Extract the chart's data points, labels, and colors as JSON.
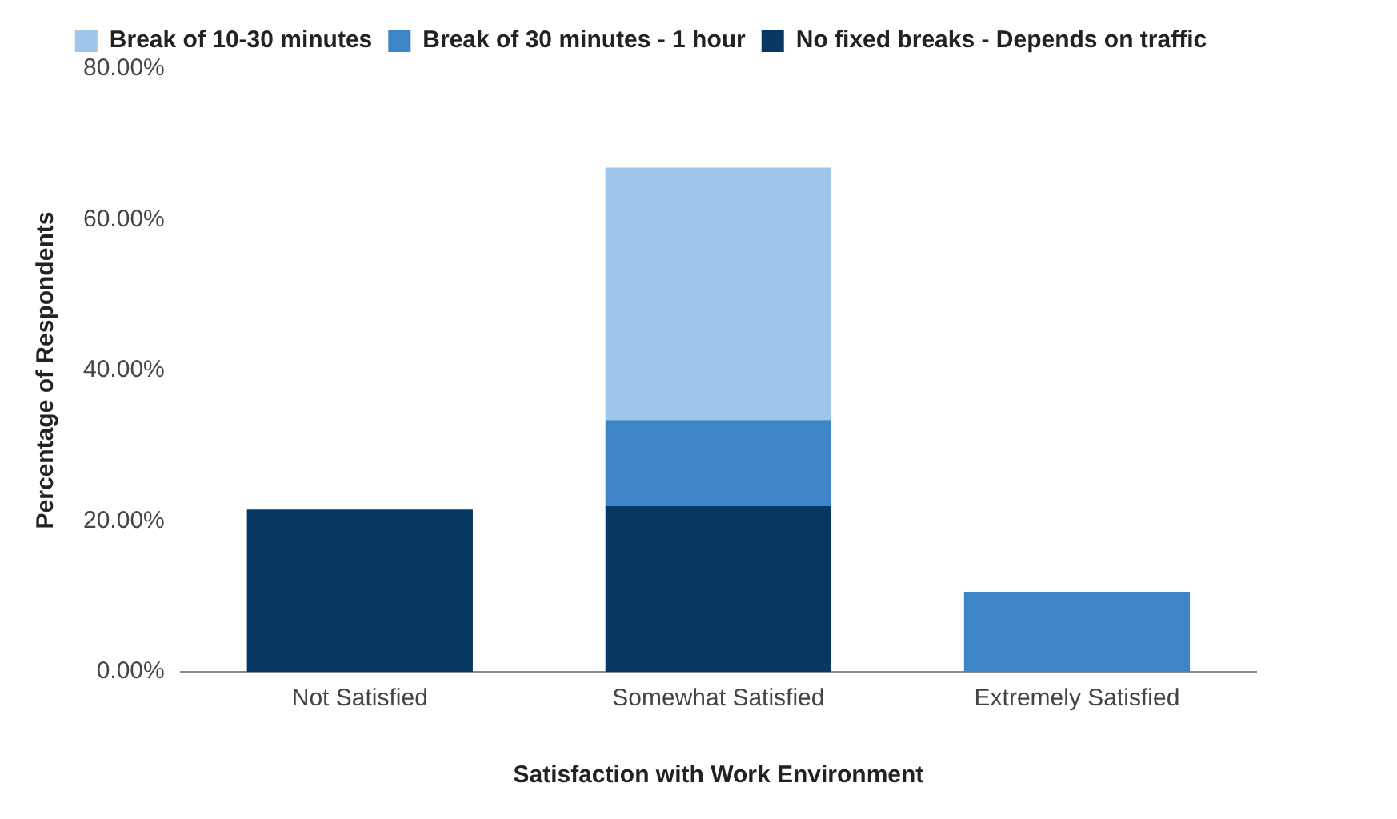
{
  "chart_data": {
    "type": "bar",
    "stacked": true,
    "xlabel": "Satisfaction with Work Environment",
    "ylabel": "Percentage of Respondents",
    "categories": [
      "Not Satisfied",
      "Somewhat Satisfied",
      "Extremely Satisfied"
    ],
    "series": [
      {
        "name": "No fixed breaks - Depends on traffic",
        "color": "#073763",
        "values": [
          21.5,
          22,
          null
        ]
      },
      {
        "name": "Break of 30 minutes - 1 hour",
        "color": "#3d85c6",
        "values": [
          null,
          11.4,
          10.6
        ]
      },
      {
        "name": "Break of 10-30 minutes",
        "color": "#9fc5e8",
        "values": [
          null,
          33.5,
          null
        ]
      }
    ],
    "ylim": [
      0,
      80
    ],
    "yticks": [
      {
        "value": 0,
        "label": "0.00%"
      },
      {
        "value": 20,
        "label": "20.00%"
      },
      {
        "value": 40,
        "label": "40.00%"
      },
      {
        "value": 60,
        "label": "60.00%"
      },
      {
        "value": 80,
        "label": "80.00%"
      }
    ],
    "grid": false,
    "legend": "top"
  }
}
